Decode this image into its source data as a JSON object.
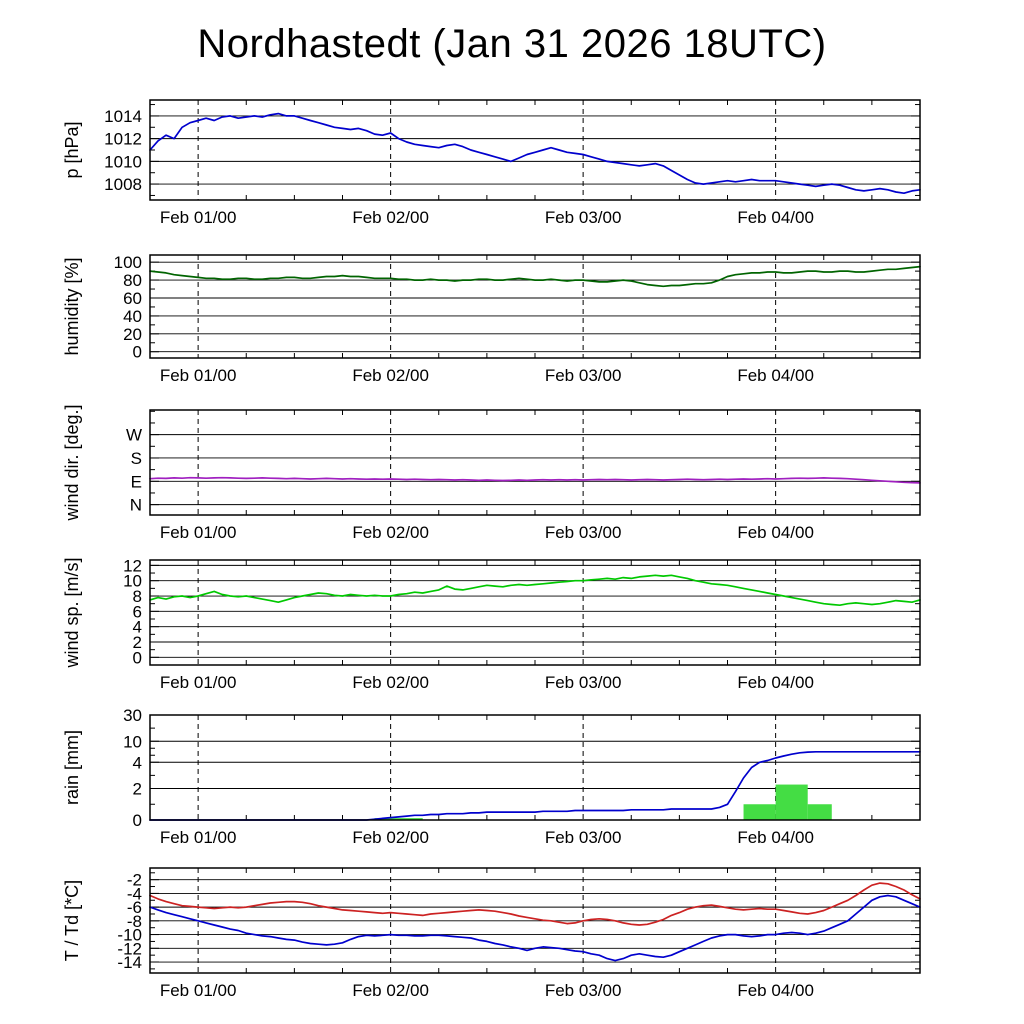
{
  "title": "Nordhastedt (Jan 31 2026 18UTC)",
  "x_axis": {
    "total_hours": 96,
    "day_line_hours": [
      6,
      30,
      54,
      78
    ],
    "day_labels": [
      "Feb 01/00",
      "Feb 02/00",
      "Feb 03/00",
      "Feb 04/00"
    ],
    "minor_tick_hours": 6
  },
  "chart_data": [
    {
      "id": "pressure",
      "type": "line",
      "ylabel": "p [hPa]",
      "ylim": [
        1006.6,
        1015.4
      ],
      "yticks": [
        1008,
        1010,
        1012,
        1014
      ],
      "ytick_labels": [
        "1008",
        "1010",
        "1012",
        "1014"
      ],
      "minor_step": 1,
      "series": [
        {
          "name": "pressure",
          "color": "#0000cd",
          "values": [
            1011.0,
            1011.8,
            1012.3,
            1012.0,
            1013.0,
            1013.4,
            1013.6,
            1013.8,
            1013.6,
            1013.9,
            1014.0,
            1013.8,
            1013.9,
            1014.0,
            1013.9,
            1014.1,
            1014.2,
            1014.0,
            1014.0,
            1013.8,
            1013.6,
            1013.4,
            1013.2,
            1013.0,
            1012.9,
            1012.8,
            1012.9,
            1012.7,
            1012.4,
            1012.3,
            1012.5,
            1012.0,
            1011.7,
            1011.5,
            1011.4,
            1011.3,
            1011.2,
            1011.4,
            1011.5,
            1011.3,
            1011.0,
            1010.8,
            1010.6,
            1010.4,
            1010.2,
            1010.0,
            1010.3,
            1010.6,
            1010.8,
            1011.0,
            1011.2,
            1011.0,
            1010.8,
            1010.7,
            1010.6,
            1010.4,
            1010.2,
            1010.0,
            1009.9,
            1009.8,
            1009.7,
            1009.6,
            1009.7,
            1009.8,
            1009.6,
            1009.2,
            1008.8,
            1008.4,
            1008.1,
            1008.0,
            1008.1,
            1008.2,
            1008.3,
            1008.2,
            1008.3,
            1008.4,
            1008.3,
            1008.3,
            1008.3,
            1008.2,
            1008.1,
            1008.0,
            1007.9,
            1007.8,
            1007.9,
            1008.0,
            1007.9,
            1007.7,
            1007.5,
            1007.4,
            1007.5,
            1007.6,
            1007.5,
            1007.3,
            1007.2,
            1007.4,
            1007.5
          ]
        }
      ]
    },
    {
      "id": "humidity",
      "type": "line",
      "ylabel": "humidity [%]",
      "ylim": [
        -7,
        108
      ],
      "yticks": [
        0,
        20,
        40,
        60,
        80,
        100
      ],
      "ytick_labels": [
        "0",
        "20",
        "40",
        "60",
        "80",
        "100"
      ],
      "minor_step": 10,
      "series": [
        {
          "name": "humidity",
          "color": "#006400",
          "values": [
            90,
            89,
            88,
            86,
            85,
            84,
            83,
            82,
            82,
            81,
            81,
            82,
            82,
            81,
            81,
            82,
            82,
            83,
            83,
            82,
            82,
            83,
            84,
            84,
            85,
            84,
            84,
            83,
            82,
            82,
            82,
            81,
            81,
            80,
            80,
            81,
            80,
            80,
            79,
            80,
            80,
            81,
            81,
            80,
            80,
            81,
            82,
            81,
            80,
            80,
            81,
            80,
            79,
            80,
            80,
            79,
            78,
            78,
            79,
            80,
            79,
            77,
            75,
            74,
            73,
            74,
            74,
            75,
            76,
            76,
            77,
            80,
            84,
            86,
            87,
            88,
            88,
            89,
            89,
            88,
            88,
            89,
            90,
            90,
            89,
            89,
            90,
            90,
            89,
            89,
            90,
            91,
            92,
            92,
            93,
            94,
            95
          ]
        }
      ]
    },
    {
      "id": "wind-direction",
      "type": "line",
      "ylabel": "wind dir. [deg.]",
      "ylim": [
        -40,
        365
      ],
      "yticks": [
        0,
        90,
        180,
        270
      ],
      "ytick_labels": [
        "N",
        "E",
        "S",
        "W"
      ],
      "minor_step": 45,
      "series": [
        {
          "name": "wind-direction",
          "color": "#a020c0",
          "values": [
            100,
            102,
            101,
            103,
            102,
            104,
            103,
            102,
            103,
            104,
            103,
            102,
            101,
            102,
            103,
            102,
            101,
            100,
            101,
            100,
            99,
            100,
            101,
            100,
            99,
            100,
            99,
            98,
            99,
            98,
            99,
            98,
            97,
            98,
            97,
            96,
            97,
            96,
            95,
            96,
            95,
            94,
            95,
            94,
            93,
            94,
            95,
            94,
            95,
            96,
            95,
            96,
            95,
            96,
            95,
            96,
            97,
            96,
            97,
            96,
            95,
            96,
            97,
            96,
            95,
            96,
            97,
            98,
            97,
            96,
            97,
            98,
            97,
            98,
            99,
            98,
            99,
            100,
            99,
            100,
            101,
            102,
            101,
            102,
            103,
            102,
            101,
            100,
            98,
            96,
            94,
            92,
            90,
            88,
            86,
            85,
            84
          ]
        }
      ]
    },
    {
      "id": "wind-speed",
      "type": "line",
      "ylabel": "wind sp. [m/s]",
      "ylim": [
        -1,
        12.7
      ],
      "yticks": [
        0,
        2,
        4,
        6,
        8,
        10,
        12
      ],
      "ytick_labels": [
        "0",
        "2",
        "4",
        "6",
        "8",
        "10",
        "12"
      ],
      "minor_step": 1,
      "series": [
        {
          "name": "wind-speed",
          "color": "#00c800",
          "values": [
            7.5,
            7.8,
            7.6,
            7.9,
            8.0,
            7.8,
            8.0,
            8.3,
            8.6,
            8.2,
            8.0,
            7.9,
            8.0,
            7.8,
            7.6,
            7.4,
            7.2,
            7.5,
            7.8,
            8.0,
            8.2,
            8.4,
            8.3,
            8.1,
            8.0,
            8.2,
            8.1,
            8.0,
            8.1,
            8.0,
            8.0,
            8.2,
            8.3,
            8.5,
            8.4,
            8.6,
            8.8,
            9.3,
            8.9,
            8.8,
            9.0,
            9.2,
            9.4,
            9.3,
            9.2,
            9.4,
            9.5,
            9.4,
            9.5,
            9.6,
            9.7,
            9.8,
            9.9,
            10.0,
            10.0,
            10.1,
            10.2,
            10.3,
            10.2,
            10.4,
            10.3,
            10.5,
            10.6,
            10.7,
            10.6,
            10.7,
            10.5,
            10.3,
            10.0,
            9.8,
            9.6,
            9.5,
            9.4,
            9.2,
            9.0,
            8.8,
            8.6,
            8.4,
            8.2,
            8.0,
            7.8,
            7.6,
            7.4,
            7.2,
            7.0,
            6.9,
            6.8,
            7.0,
            7.1,
            7.0,
            6.9,
            7.0,
            7.2,
            7.4,
            7.3,
            7.2,
            7.5
          ]
        }
      ]
    },
    {
      "id": "rain",
      "type": "line-with-bars",
      "ylabel": "rain [mm]",
      "scale_anchors": {
        "values": [
          0,
          2,
          4,
          10,
          30
        ],
        "fractions": [
          0,
          0.3,
          0.55,
          0.75,
          1
        ]
      },
      "yticks": [
        0,
        2,
        4,
        10,
        30
      ],
      "ytick_labels": [
        "0",
        "2",
        "4",
        "10",
        "30"
      ],
      "minor_values": [
        1,
        3,
        6,
        8,
        20
      ],
      "bars": {
        "color": "#44dd44",
        "data": [
          {
            "from_h": 28,
            "to_h": 34,
            "mm": 0.12
          },
          {
            "from_h": 74,
            "to_h": 78,
            "mm": 1.0
          },
          {
            "from_h": 78,
            "to_h": 82,
            "mm": 2.3
          },
          {
            "from_h": 82,
            "to_h": 85,
            "mm": 1.0
          }
        ]
      },
      "series": [
        {
          "name": "rain-accumulated",
          "color": "#0000cd",
          "values": [
            0,
            0,
            0,
            0,
            0,
            0,
            0,
            0,
            0,
            0,
            0,
            0,
            0,
            0,
            0,
            0,
            0,
            0,
            0,
            0,
            0,
            0,
            0,
            0,
            0,
            0,
            0,
            0,
            0.05,
            0.1,
            0.15,
            0.2,
            0.25,
            0.3,
            0.3,
            0.35,
            0.35,
            0.4,
            0.4,
            0.4,
            0.45,
            0.45,
            0.5,
            0.5,
            0.5,
            0.5,
            0.5,
            0.5,
            0.5,
            0.55,
            0.55,
            0.55,
            0.55,
            0.6,
            0.6,
            0.6,
            0.6,
            0.6,
            0.6,
            0.6,
            0.65,
            0.65,
            0.65,
            0.65,
            0.65,
            0.7,
            0.7,
            0.7,
            0.7,
            0.7,
            0.7,
            0.8,
            1.0,
            1.8,
            2.8,
            3.6,
            4.0,
            4.5,
            5.2,
            5.8,
            6.3,
            6.7,
            6.9,
            7.0,
            7.0,
            7.0,
            7.0,
            7.0,
            7.0,
            7.0,
            7.0,
            7.0,
            7.0,
            7.0,
            7.0,
            7.0,
            7.0
          ]
        }
      ]
    },
    {
      "id": "temperature",
      "type": "line",
      "ylabel": "T / Td [*C]",
      "ylim": [
        -15.6,
        -0.3
      ],
      "yticks": [
        -14,
        -12,
        -10,
        -8,
        -6,
        -4,
        -2
      ],
      "ytick_labels": [
        "-14",
        "-12",
        "-10",
        "-8",
        "-6",
        "-4",
        "-2"
      ],
      "minor_step": 1,
      "series": [
        {
          "name": "temperature",
          "color": "#cc2222",
          "values": [
            -4.3,
            -4.8,
            -5.2,
            -5.5,
            -5.8,
            -5.9,
            -6.0,
            -6.1,
            -6.2,
            -6.1,
            -6.0,
            -6.1,
            -6.0,
            -5.8,
            -5.6,
            -5.4,
            -5.3,
            -5.2,
            -5.2,
            -5.3,
            -5.5,
            -5.8,
            -6.0,
            -6.2,
            -6.4,
            -6.5,
            -6.6,
            -6.7,
            -6.8,
            -6.9,
            -6.8,
            -6.9,
            -7.0,
            -7.1,
            -7.2,
            -7.0,
            -6.9,
            -6.8,
            -6.7,
            -6.6,
            -6.5,
            -6.4,
            -6.5,
            -6.6,
            -6.8,
            -7.0,
            -7.3,
            -7.5,
            -7.7,
            -7.9,
            -8.0,
            -8.2,
            -8.4,
            -8.3,
            -8.0,
            -7.8,
            -7.7,
            -7.8,
            -8.0,
            -8.3,
            -8.5,
            -8.6,
            -8.5,
            -8.2,
            -7.8,
            -7.2,
            -6.8,
            -6.3,
            -6.0,
            -5.8,
            -5.7,
            -5.9,
            -6.1,
            -6.3,
            -6.4,
            -6.3,
            -6.2,
            -6.3,
            -6.3,
            -6.5,
            -6.7,
            -6.9,
            -7.0,
            -6.8,
            -6.5,
            -6.0,
            -5.5,
            -5.0,
            -4.3,
            -3.5,
            -2.8,
            -2.5,
            -2.6,
            -3.0,
            -3.5,
            -4.2,
            -4.8
          ]
        },
        {
          "name": "dew-point",
          "color": "#0000cd",
          "values": [
            -6.0,
            -6.4,
            -6.8,
            -7.1,
            -7.4,
            -7.7,
            -8.0,
            -8.3,
            -8.6,
            -8.9,
            -9.2,
            -9.4,
            -9.8,
            -10.0,
            -10.2,
            -10.3,
            -10.5,
            -10.7,
            -10.8,
            -11.1,
            -11.3,
            -11.4,
            -11.5,
            -11.4,
            -11.2,
            -10.7,
            -10.3,
            -10.1,
            -10.2,
            -10.1,
            -10.0,
            -10.1,
            -10.1,
            -10.2,
            -10.2,
            -10.1,
            -10.1,
            -10.2,
            -10.3,
            -10.4,
            -10.5,
            -10.8,
            -11.0,
            -11.3,
            -11.5,
            -11.8,
            -12.0,
            -12.3,
            -12.0,
            -11.8,
            -11.9,
            -12.0,
            -12.2,
            -12.4,
            -12.5,
            -12.8,
            -13.0,
            -13.5,
            -13.8,
            -13.5,
            -13.0,
            -12.8,
            -13.0,
            -13.2,
            -13.3,
            -13.0,
            -12.5,
            -12.0,
            -11.5,
            -11.0,
            -10.5,
            -10.2,
            -10.0,
            -10.0,
            -10.2,
            -10.3,
            -10.2,
            -10.0,
            -10.0,
            -9.8,
            -9.7,
            -9.8,
            -10.0,
            -9.8,
            -9.5,
            -9.0,
            -8.5,
            -8.0,
            -7.0,
            -6.0,
            -5.0,
            -4.5,
            -4.3,
            -4.5,
            -5.0,
            -5.5,
            -6.0
          ]
        }
      ]
    }
  ]
}
